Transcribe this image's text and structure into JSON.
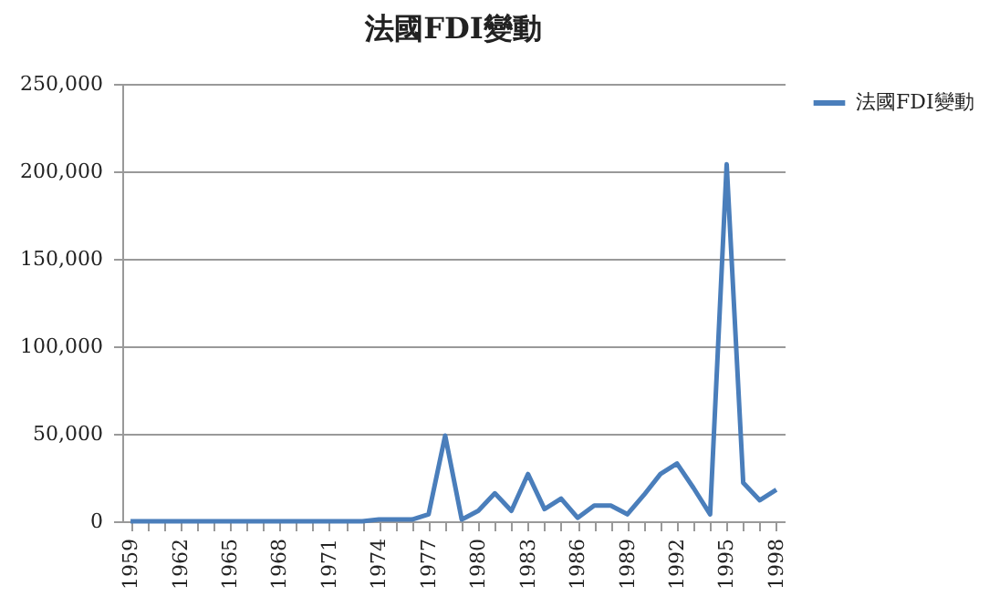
{
  "chart_data": {
    "type": "line",
    "title": "法國FDI變動",
    "categories": [
      "1959",
      null,
      null,
      "1962",
      null,
      null,
      "1965",
      null,
      null,
      "1968",
      null,
      null,
      "1971",
      null,
      null,
      "1974",
      null,
      null,
      "1977",
      null,
      null,
      "1980",
      null,
      null,
      "1983",
      null,
      null,
      "1986",
      null,
      null,
      "1989",
      null,
      null,
      "1992",
      null,
      null,
      "1995",
      null,
      null,
      "1998"
    ],
    "series": [
      {
        "name": "法國FDI變動",
        "color": "#4a7ebb",
        "values": [
          0,
          0,
          0,
          0,
          0,
          0,
          0,
          0,
          0,
          0,
          0,
          0,
          0,
          0,
          0,
          1000,
          1000,
          1000,
          4000,
          49000,
          1000,
          6000,
          16000,
          6000,
          27000,
          7000,
          13000,
          2000,
          9000,
          9000,
          4000,
          15000,
          27000,
          33000,
          19000,
          4000,
          204000,
          22000,
          12000,
          18000
        ]
      }
    ],
    "ylim": [
      0,
      250000
    ],
    "yticks": [
      0,
      {
        "value": 50000,
        "label": "50,000"
      },
      {
        "value": 100000,
        "label": "100,000"
      },
      {
        "value": 150000,
        "label": "150,000"
      },
      {
        "value": 200000,
        "label": "200,000"
      },
      {
        "value": 250000,
        "label": "250,000"
      }
    ],
    "grid": "y",
    "legend": "right"
  }
}
